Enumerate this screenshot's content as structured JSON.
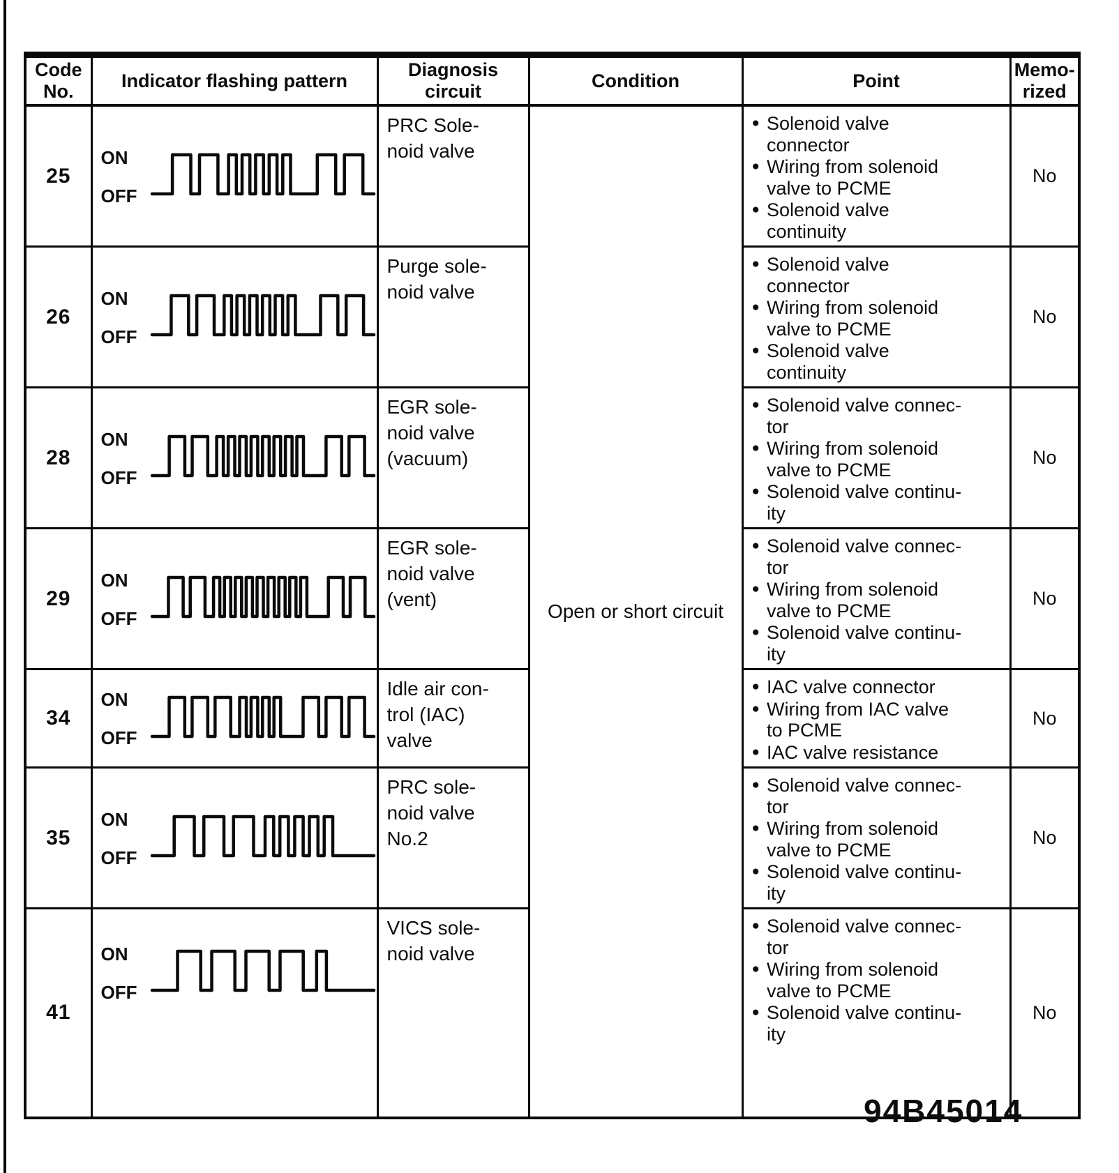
{
  "scan": {
    "figure_code": "94B45014"
  },
  "table": {
    "bullet": "●",
    "wave_labels": {
      "on": "ON",
      "off": "OFF"
    },
    "headers": {
      "code": "Code\nNo.",
      "pattern": "Indicator flashing pattern",
      "diagnosis": "Diagnosis\ncircuit",
      "condition": "Condition",
      "point": "Point",
      "memorized": "Memo-\nrized"
    },
    "condition": "Open or short circuit",
    "rows": [
      {
        "code": "25",
        "pattern": {
          "long": 2,
          "short": 5,
          "repeat": 2
        },
        "diagnosis": "PRC Sole-\nnoid valve",
        "points": [
          "Solenoid valve\nconnector",
          "Wiring from solenoid\nvalve to PCME",
          "Solenoid valve\ncontinuity"
        ],
        "memorized": "No"
      },
      {
        "code": "26",
        "pattern": {
          "long": 2,
          "short": 6,
          "repeat": 2
        },
        "diagnosis": "Purge sole-\nnoid valve",
        "points": [
          "Solenoid valve\nconnector",
          "Wiring from solenoid\nvalve to PCME",
          "Solenoid valve\ncontinuity"
        ],
        "memorized": "No"
      },
      {
        "code": "28",
        "pattern": {
          "long": 2,
          "short": 8,
          "repeat": 2
        },
        "diagnosis": "EGR sole-\nnoid valve\n(vacuum)",
        "points": [
          "Solenoid valve connec-\ntor",
          "Wiring from solenoid\nvalve to PCME",
          "Solenoid valve continu-\nity"
        ],
        "memorized": "No"
      },
      {
        "code": "29",
        "pattern": {
          "long": 2,
          "short": 9,
          "repeat": 2
        },
        "diagnosis": "EGR sole-\nnoid valve\n(vent)",
        "points": [
          "Solenoid valve connec-\ntor",
          "Wiring from solenoid\nvalve to PCME",
          "Solenoid valve continu-\nity"
        ],
        "memorized": "No"
      },
      {
        "code": "34",
        "pattern": {
          "long": 3,
          "short": 4,
          "repeat": 3
        },
        "diagnosis": "Idle air con-\ntrol (IAC)\nvalve",
        "points": [
          "IAC valve connector",
          "Wiring from IAC valve\nto PCME",
          "IAC valve resistance"
        ],
        "memorized": "No"
      },
      {
        "code": "35",
        "pattern": {
          "long": 3,
          "short": 5,
          "repeat": 0
        },
        "diagnosis": "PRC sole-\nnoid valve\nNo.2",
        "points": [
          "Solenoid valve connec-\ntor",
          "Wiring from solenoid\nvalve to PCME",
          "Solenoid valve continu-\nity"
        ],
        "memorized": "No"
      },
      {
        "code": "41",
        "pattern": {
          "long": 4,
          "short": 1,
          "repeat": 0
        },
        "diagnosis": "VICS sole-\nnoid valve",
        "points": [
          "Solenoid valve connec-\ntor",
          "Wiring from solenoid\nvalve to PCME",
          "Solenoid valve continu-\nity"
        ],
        "memorized": "No"
      }
    ]
  }
}
